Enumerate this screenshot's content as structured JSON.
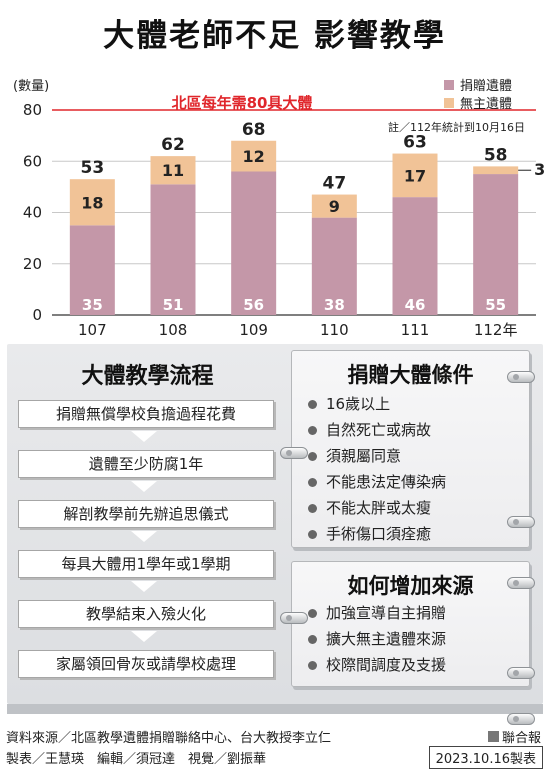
{
  "title": "大體老師不足  影響教學",
  "chart_data": {
    "type": "bar",
    "stacked": true,
    "ylabel": "(數量)",
    "ylim": [
      0,
      80
    ],
    "yticks": [
      0,
      20,
      40,
      60,
      80
    ],
    "categories": [
      "107",
      "108",
      "109",
      "110",
      "111",
      "112年"
    ],
    "series": [
      {
        "name": "捐贈遺體",
        "color": "#c497a8",
        "values": [
          35,
          51,
          56,
          38,
          46,
          55
        ]
      },
      {
        "name": "無主遺體",
        "color": "#f1c397",
        "values": [
          18,
          11,
          12,
          9,
          17,
          3
        ]
      }
    ],
    "totals": [
      53,
      62,
      68,
      47,
      63,
      58
    ],
    "reference_line": {
      "value": 80,
      "label": "北區每年需80具大體",
      "color": "#e0262b"
    },
    "note": "註／112年統計到10月16日",
    "legend_position": "top-right"
  },
  "flow": {
    "title": "大體教學流程",
    "steps": [
      "捐贈無償學校負擔過程花費",
      "遺體至少防腐1年",
      "解剖教學前先辦追思儀式",
      "每具大體用1學年或1學期",
      "教學結束入殮火化",
      "家屬領回骨灰或請學校處理"
    ]
  },
  "conditions": {
    "title": "捐贈大體條件",
    "items": [
      "16歲以上",
      "自然死亡或病故",
      "須親屬同意",
      "不能患法定傳染病",
      "不能太胖或太瘦",
      "手術傷口須痊癒"
    ]
  },
  "sources_box": {
    "title": "如何增加來源",
    "items": [
      "加強宣導自主捐贈",
      "擴大無主遺體來源",
      "校際間調度及支援"
    ]
  },
  "footer": {
    "sources": "資料來源／北區教學遺體捐贈聯絡中心、台大教授李立仁",
    "credits": "製表／王慧瑛　編輯／須冠達　視覺／劉振華",
    "brand": "聯合報",
    "date": "2023.10.16製表"
  }
}
